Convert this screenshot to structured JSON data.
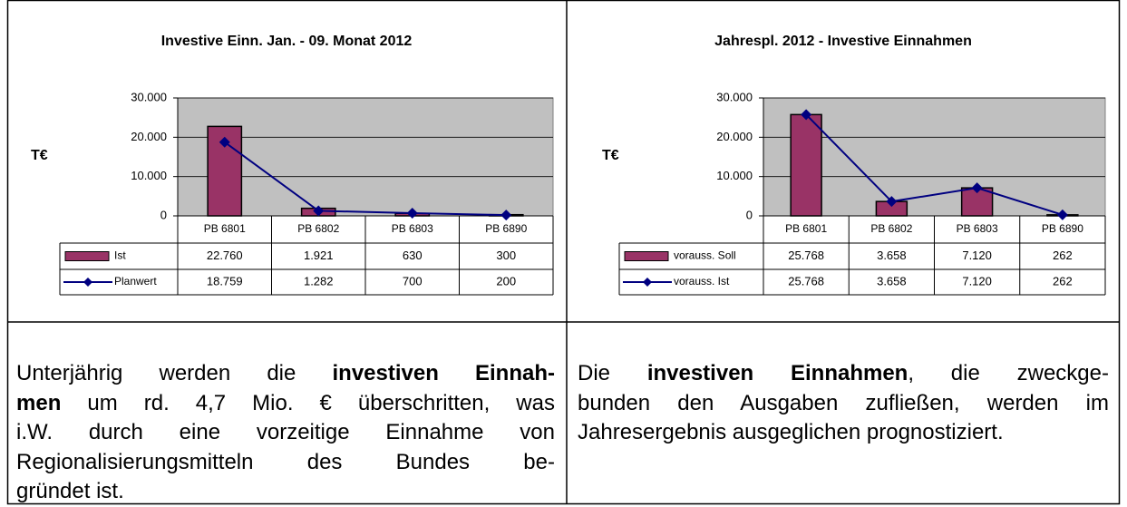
{
  "chart_data": [
    {
      "type": "bar",
      "title": "Investive Einn. Jan. - 09. Monat 2012",
      "ylabel": "T€",
      "categories": [
        "PB 6801",
        "PB 6802",
        "PB 6803",
        "PB 6890"
      ],
      "series": [
        {
          "name": "Ist",
          "type": "bar",
          "color": "#993366",
          "values": [
            22760,
            1921,
            630,
            300
          ],
          "value_labels": [
            "22.760",
            "1.921",
            "630",
            "300"
          ]
        },
        {
          "name": "Planwert",
          "type": "line",
          "color": "#000080",
          "values": [
            18759,
            1282,
            700,
            200
          ],
          "value_labels": [
            "18.759",
            "1.282",
            "700",
            "200"
          ]
        }
      ],
      "ylim": [
        0,
        30000
      ],
      "yticks": [
        0,
        {
          "value": 10000,
          "label": "10.000"
        },
        {
          "value": 20000,
          "label": "20.000"
        },
        {
          "value": 30000,
          "label": "30.000"
        }
      ],
      "grid": true
    },
    {
      "type": "bar",
      "title": "Jahrespl.  2012 - Investive Einnahmen",
      "ylabel": "T€",
      "categories": [
        "PB 6801",
        "PB 6802",
        "PB 6803",
        "PB 6890"
      ],
      "series": [
        {
          "name": "vorauss. Soll",
          "type": "bar",
          "color": "#993366",
          "values": [
            25768,
            3658,
            7120,
            262
          ],
          "value_labels": [
            "25.768",
            "3.658",
            "7.120",
            "262"
          ]
        },
        {
          "name": "vorauss. Ist",
          "type": "line",
          "color": "#000080",
          "values": [
            25768,
            3658,
            7120,
            262
          ],
          "value_labels": [
            "25.768",
            "3.658",
            "7.120",
            "262"
          ]
        }
      ],
      "ylim": [
        0,
        30000
      ],
      "yticks": [
        0,
        {
          "value": 10000,
          "label": "10.000"
        },
        {
          "value": 20000,
          "label": "20.000"
        },
        {
          "value": 30000,
          "label": "30.000"
        }
      ],
      "grid": true
    }
  ],
  "text": [
    [
      [
        {
          "text": "Unterjährig werden die "
        },
        {
          "text": "investiven Einnah-",
          "bold": true
        }
      ],
      [
        {
          "text": "men",
          "bold": true
        },
        {
          "text": " um rd. 4,7 Mio. € überschritten, was"
        }
      ],
      [
        {
          "text": "i.W. durch eine vorzeitige Einnahme von"
        }
      ],
      [
        {
          "text": "Regionalisierungsmitteln des Bundes be-"
        }
      ],
      [
        {
          "text": "gründet ist."
        }
      ]
    ],
    [
      [
        {
          "text": "Die "
        },
        {
          "text": "investiven Einnahmen",
          "bold": true
        },
        {
          "text": ", die zweckge-"
        }
      ],
      [
        {
          "text": "bunden den Ausgaben zufließen, werden im"
        }
      ],
      [
        {
          "text": "Jahresergebnis ausgeglichen prognostiziert."
        }
      ]
    ]
  ]
}
